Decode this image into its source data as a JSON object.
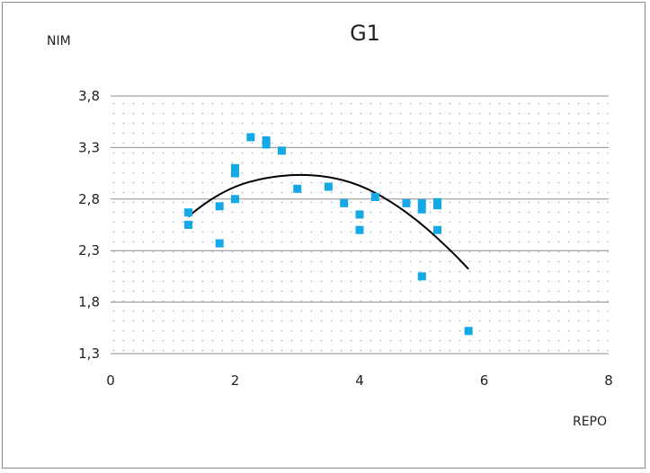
{
  "chart_data": {
    "type": "scatter",
    "title": "G1",
    "xlabel": "REPO",
    "ylabel": "NIM",
    "xlim": [
      0,
      8
    ],
    "ylim": [
      1.3,
      3.8
    ],
    "x_ticks": [
      "0",
      "2",
      "4",
      "6",
      "8"
    ],
    "y_ticks": [
      "1,3",
      "1,8",
      "2,3",
      "2,8",
      "3,3",
      "3,8"
    ],
    "grid": "horizontal",
    "legend": "none",
    "point_color": "#12a9e6",
    "trend_color": "#000000",
    "points": [
      {
        "x": 1.25,
        "y": 2.67
      },
      {
        "x": 1.25,
        "y": 2.55
      },
      {
        "x": 1.75,
        "y": 2.73
      },
      {
        "x": 1.75,
        "y": 2.37
      },
      {
        "x": 2.0,
        "y": 3.1
      },
      {
        "x": 2.0,
        "y": 3.05
      },
      {
        "x": 2.0,
        "y": 2.8
      },
      {
        "x": 2.25,
        "y": 3.4
      },
      {
        "x": 2.5,
        "y": 3.37
      },
      {
        "x": 2.5,
        "y": 3.33
      },
      {
        "x": 2.75,
        "y": 3.27
      },
      {
        "x": 3.0,
        "y": 2.9
      },
      {
        "x": 3.5,
        "y": 2.92
      },
      {
        "x": 3.75,
        "y": 2.76
      },
      {
        "x": 4.0,
        "y": 2.65
      },
      {
        "x": 4.0,
        "y": 2.5
      },
      {
        "x": 4.25,
        "y": 2.82
      },
      {
        "x": 4.75,
        "y": 2.76
      },
      {
        "x": 5.0,
        "y": 2.76
      },
      {
        "x": 5.0,
        "y": 2.7
      },
      {
        "x": 5.0,
        "y": 2.05
      },
      {
        "x": 5.25,
        "y": 2.77
      },
      {
        "x": 5.25,
        "y": 2.74
      },
      {
        "x": 5.25,
        "y": 2.5
      },
      {
        "x": 5.75,
        "y": 1.52
      }
    ],
    "trendline": {
      "type": "polynomial",
      "x": [
        1.25,
        1.5,
        2.0,
        2.5,
        3.0,
        3.5,
        4.0,
        4.5,
        5.0,
        5.5,
        5.75
      ],
      "y": [
        2.63,
        2.76,
        2.93,
        3.01,
        3.04,
        3.02,
        2.94,
        2.78,
        2.56,
        2.28,
        2.12
      ]
    }
  }
}
